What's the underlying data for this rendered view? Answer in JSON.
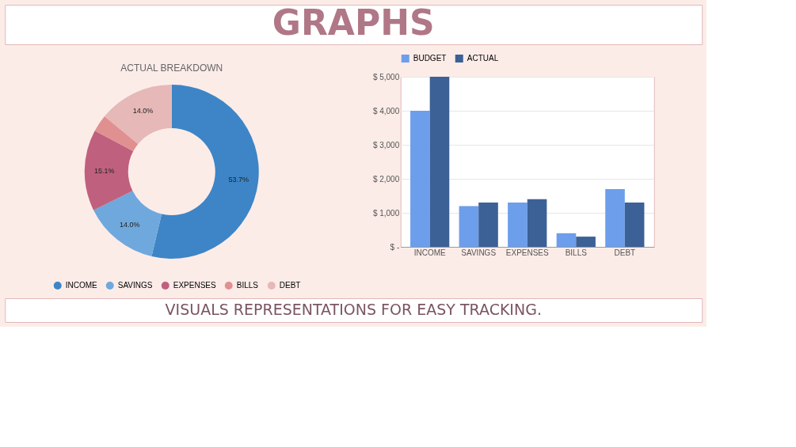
{
  "chart_data": [
    {
      "type": "other",
      "title": "GRAPHS",
      "annotations": [
        "VISUALS REPRESENTATIONS FOR EASY TRACKING."
      ]
    },
    {
      "type": "donut",
      "title": "ACTUAL BREAKDOWN",
      "categories": [
        "INCOME",
        "SAVINGS",
        "EXPENSES",
        "BILLS",
        "DEBT"
      ],
      "values": [
        53.7,
        14.0,
        15.1,
        3.2,
        14.0
      ],
      "colors": [
        "#3d85c6",
        "#6fa8dc",
        "#c0607f",
        "#e09090",
        "#e6b8b8"
      ],
      "value_labels": [
        "53.7%",
        "14.0%",
        "15.1%",
        null,
        "14.0%"
      ],
      "legend": "bottom"
    },
    {
      "type": "bar",
      "categories": [
        "INCOME",
        "SAVINGS",
        "EXPENSES",
        "BILLS",
        "DEBT"
      ],
      "series": [
        {
          "name": "BUDGET",
          "color": "#6d9eeb",
          "values": [
            4000,
            1200,
            1300,
            400,
            1700
          ]
        },
        {
          "name": "ACTUAL",
          "color": "#3c6196",
          "values": [
            5000,
            1300,
            1400,
            300,
            1300
          ]
        }
      ],
      "ylim": [
        0,
        5000
      ],
      "yticks": [
        {
          "value": 0,
          "label": "$ -"
        },
        {
          "value": 1000,
          "label": "$ 1,000"
        },
        {
          "value": 2000,
          "label": "$ 2,000"
        },
        {
          "value": 3000,
          "label": "$ 3,000"
        },
        {
          "value": 4000,
          "label": "$ 4,000"
        },
        {
          "value": 5000,
          "label": "$ 5,000"
        }
      ],
      "grid": "y",
      "legend": "top"
    }
  ]
}
